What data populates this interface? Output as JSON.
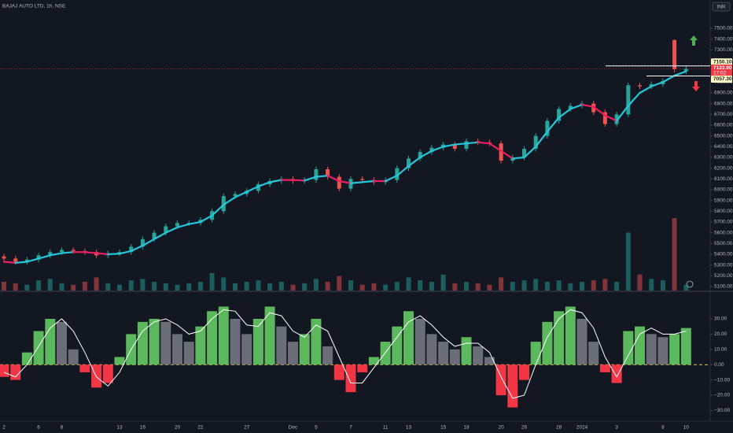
{
  "header": {
    "symbol": "BAJAJ AUTO LTD, 1h, NSE",
    "currency": "INR",
    "countdown": "17:02"
  },
  "chart_data": [
    {
      "type": "candlestick",
      "open": [
        5380,
        5360,
        5330,
        5350,
        5390,
        5420,
        5440,
        5430,
        5420,
        5390,
        5410,
        5420,
        5470,
        5540,
        5600,
        5660,
        5690,
        5690,
        5720,
        5800,
        5940,
        5960,
        5990,
        6050,
        6080,
        6100,
        6080,
        6090,
        6190,
        6120,
        6010,
        6100,
        6090,
        6070,
        6090,
        6200,
        6290,
        6350,
        6390,
        6420,
        6380,
        6450,
        6440,
        6430,
        6270,
        6300,
        6380,
        6500,
        6640,
        6750,
        6780,
        6800,
        6720,
        6610,
        6700,
        6970,
        6960,
        6980,
        7390,
        7100
      ],
      "high": [
        5405,
        5385,
        5375,
        5415,
        5445,
        5465,
        5465,
        5455,
        5445,
        5435,
        5445,
        5495,
        5565,
        5625,
        5685,
        5715,
        5715,
        5745,
        5825,
        5965,
        5985,
        6015,
        6075,
        6105,
        6125,
        6125,
        6115,
        6215,
        6215,
        6145,
        6125,
        6125,
        6115,
        6115,
        6225,
        6315,
        6375,
        6415,
        6445,
        6445,
        6475,
        6475,
        6465,
        6455,
        6325,
        6405,
        6525,
        6665,
        6775,
        6805,
        6825,
        6825,
        6745,
        6725,
        6995,
        6995,
        7005,
        7035,
        7400,
        7148
      ],
      "low": [
        5335,
        5305,
        5305,
        5325,
        5365,
        5395,
        5405,
        5395,
        5365,
        5365,
        5385,
        5395,
        5445,
        5515,
        5575,
        5635,
        5665,
        5665,
        5695,
        5775,
        5915,
        5935,
        5965,
        6025,
        6055,
        6055,
        6055,
        6065,
        6095,
        5985,
        5985,
        6065,
        6045,
        6045,
        6065,
        6175,
        6265,
        6325,
        6365,
        6355,
        6355,
        6415,
        6405,
        6245,
        6245,
        6275,
        6355,
        6475,
        6615,
        6725,
        6755,
        6695,
        6585,
        6585,
        6675,
        6935,
        6935,
        6955,
        7090,
        7075
      ],
      "close": [
        5360,
        5330,
        5350,
        5390,
        5420,
        5440,
        5430,
        5420,
        5390,
        5410,
        5420,
        5470,
        5540,
        5600,
        5660,
        5690,
        5690,
        5720,
        5800,
        5940,
        5960,
        5990,
        6050,
        6080,
        6100,
        6080,
        6090,
        6190,
        6120,
        6010,
        6100,
        6090,
        6070,
        6090,
        6200,
        6290,
        6350,
        6390,
        6420,
        6380,
        6450,
        6440,
        6430,
        6270,
        6300,
        6380,
        6500,
        6640,
        6750,
        6780,
        6800,
        6720,
        6610,
        6700,
        6970,
        6960,
        6980,
        7010,
        7120,
        7123
      ],
      "volume": [
        30,
        25,
        20,
        35,
        40,
        25,
        20,
        30,
        45,
        25,
        20,
        35,
        40,
        30,
        25,
        20,
        25,
        30,
        60,
        45,
        25,
        30,
        35,
        25,
        30,
        20,
        25,
        40,
        30,
        50,
        35,
        20,
        25,
        20,
        30,
        45,
        35,
        30,
        55,
        25,
        30,
        25,
        20,
        45,
        30,
        35,
        40,
        30,
        35,
        25,
        30,
        35,
        40,
        30,
        200,
        55,
        40,
        35,
        250,
        20
      ],
      "ma": [
        5330,
        5320,
        5330,
        5360,
        5390,
        5410,
        5420,
        5420,
        5410,
        5400,
        5405,
        5430,
        5480,
        5540,
        5600,
        5650,
        5680,
        5700,
        5760,
        5860,
        5930,
        5980,
        6030,
        6070,
        6090,
        6090,
        6085,
        6120,
        6130,
        6080,
        6060,
        6070,
        6080,
        6080,
        6130,
        6220,
        6300,
        6360,
        6400,
        6420,
        6430,
        6440,
        6430,
        6360,
        6290,
        6300,
        6400,
        6540,
        6670,
        6750,
        6790,
        6770,
        6690,
        6640,
        6780,
        6900,
        6960,
        7000,
        7060,
        7100
      ],
      "up_color": "#26a69a",
      "down_color": "#ef5350",
      "ma_up_color": "#26c6da",
      "ma_down_color": "#e91e63",
      "ylim": [
        5063,
        7763
      ],
      "yticks": [
        {
          "value": 5100,
          "label": "5100.00"
        },
        {
          "value": 5200,
          "label": "5200.00"
        },
        {
          "value": 5300,
          "label": "5300.00"
        },
        {
          "value": 5400,
          "label": "5400.00"
        },
        {
          "value": 5500,
          "label": "5500.00"
        },
        {
          "value": 5600,
          "label": "5600.00"
        },
        {
          "value": 5700,
          "label": "5700.00"
        },
        {
          "value": 5800,
          "label": "5800.00"
        },
        {
          "value": 5900,
          "label": "5900.00"
        },
        {
          "value": 6000,
          "label": "6000.00"
        },
        {
          "value": 6100,
          "label": "6100.00"
        },
        {
          "value": 6200,
          "label": "6200.00"
        },
        {
          "value": 6300,
          "label": "6300.00"
        },
        {
          "value": 6400,
          "label": "6400.00"
        },
        {
          "value": 6500,
          "label": "6500.00"
        },
        {
          "value": 6600,
          "label": "6600.00"
        },
        {
          "value": 6700,
          "label": "6700.00"
        },
        {
          "value": 6800,
          "label": "6800.00"
        },
        {
          "value": 6900,
          "label": "6900.00"
        },
        {
          "value": 7000,
          "label": "7000.00"
        },
        {
          "value": 7100,
          "label": "7100.00"
        },
        {
          "value": 7200,
          "label": "7200.00"
        },
        {
          "value": 7300,
          "label": "7300.00"
        },
        {
          "value": 7400,
          "label": "7400.00"
        },
        {
          "value": 7500,
          "label": "7500.00"
        }
      ],
      "price_labels": [
        {
          "value": 7150.1,
          "label": "7150.10",
          "color": "#fff9c4"
        },
        {
          "value": 7123,
          "label": "7123.00",
          "color": "#f23645"
        },
        {
          "value": 7057.3,
          "label": "7057.30",
          "color": "#fff9c4"
        }
      ]
    },
    {
      "type": "bar",
      "categories": [
        "2",
        null,
        null,
        "6",
        null,
        "8",
        null,
        null,
        null,
        null,
        "13",
        null,
        "16",
        null,
        null,
        "20",
        null,
        "22",
        null,
        null,
        null,
        "27",
        null,
        null,
        null,
        "Dec",
        null,
        "5",
        null,
        null,
        "7",
        null,
        null,
        "11",
        null,
        "13",
        null,
        null,
        "15",
        null,
        "18",
        null,
        null,
        "20",
        null,
        "26",
        null,
        null,
        "28",
        null,
        "2024",
        null,
        null,
        "3",
        null,
        null,
        null,
        "8",
        null,
        "10"
      ],
      "values": [
        -8,
        -10,
        8,
        22,
        30,
        28,
        10,
        -5,
        -15,
        -12,
        5,
        20,
        28,
        30,
        28,
        20,
        15,
        25,
        35,
        38,
        30,
        20,
        30,
        38,
        25,
        15,
        20,
        30,
        12,
        -10,
        -18,
        -5,
        5,
        15,
        25,
        35,
        30,
        20,
        15,
        10,
        18,
        12,
        5,
        -20,
        -28,
        -10,
        15,
        28,
        35,
        38,
        30,
        15,
        -5,
        -12,
        22,
        25,
        20,
        18,
        20,
        24
      ],
      "signal": [
        -5,
        -8,
        0,
        12,
        24,
        30,
        22,
        8,
        -8,
        -14,
        -5,
        10,
        22,
        28,
        30,
        26,
        20,
        22,
        30,
        36,
        35,
        26,
        25,
        34,
        32,
        22,
        18,
        26,
        22,
        5,
        -12,
        -12,
        -2,
        8,
        18,
        28,
        32,
        26,
        18,
        12,
        14,
        14,
        8,
        -8,
        -22,
        -20,
        0,
        18,
        30,
        36,
        34,
        24,
        5,
        -8,
        6,
        20,
        24,
        20,
        20,
        22
      ],
      "up_color": "#5cb85c",
      "fall_color": "#6b6e78",
      "down_color": "#f23645",
      "signal_color": "#ffffff",
      "zero_color": "#e0c84a",
      "ylim": [
        -37,
        47
      ],
      "yticks": [
        {
          "value": 30,
          "label": "30.00"
        },
        {
          "value": 20,
          "label": "20.00"
        },
        {
          "value": 10,
          "label": "10.00"
        },
        {
          "value": 0,
          "label": "0.00"
        },
        {
          "value": -10,
          "label": "−10.00"
        },
        {
          "value": -20,
          "label": "−20.00"
        },
        {
          "value": -30,
          "label": "−30.00"
        }
      ]
    }
  ]
}
